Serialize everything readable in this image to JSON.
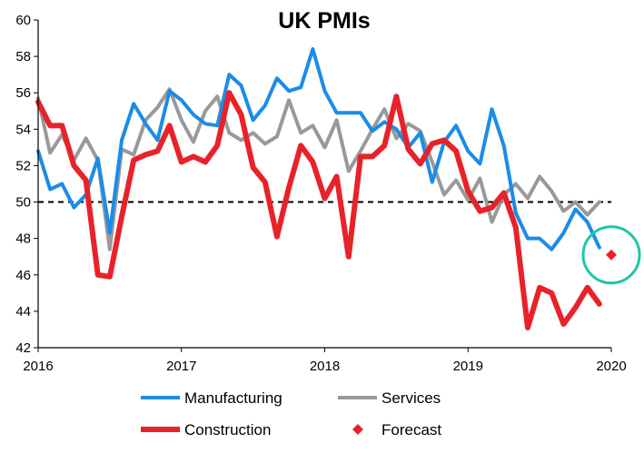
{
  "chart_data": {
    "type": "line",
    "title": "UK PMIs",
    "xlabel": "",
    "ylabel": "",
    "xlim": [
      2016.0,
      2020.0
    ],
    "ylim": [
      42,
      60
    ],
    "x_ticks": [
      "2016",
      "2017",
      "2018",
      "2019",
      "2020"
    ],
    "y_ticks": [
      "42",
      "44",
      "46",
      "48",
      "50",
      "52",
      "54",
      "56",
      "58",
      "60"
    ],
    "legend_position": "bottom",
    "grid": false,
    "reference_line": {
      "value": 50,
      "style": "dashed",
      "color": "#000000"
    },
    "highlight_circle": {
      "x": 2020.0,
      "y": 47.1,
      "color": "#1dc7a6"
    },
    "series": [
      {
        "name": "Manufacturing",
        "color": "#1b8ce8",
        "start": 2016.0,
        "step_months": 1,
        "values": [
          52.8,
          50.7,
          51.0,
          49.7,
          50.4,
          52.4,
          48.3,
          53.4,
          55.4,
          54.3,
          53.4,
          56.1,
          55.6,
          54.8,
          54.3,
          54.2,
          57.0,
          56.4,
          54.5,
          55.3,
          56.8,
          56.1,
          56.3,
          58.4,
          56.1,
          54.9,
          54.9,
          54.9,
          53.9,
          54.4,
          54.0,
          53.0,
          53.8,
          51.1,
          53.3,
          54.2,
          52.8,
          52.1,
          55.1,
          53.1,
          49.4,
          48.0,
          48.0,
          47.4,
          48.3,
          49.6,
          48.9,
          47.5
        ]
      },
      {
        "name": "Services",
        "color": "#999999",
        "start": 2016.0,
        "step_months": 1,
        "values": [
          55.7,
          52.7,
          53.7,
          52.3,
          53.5,
          52.3,
          47.4,
          52.9,
          52.6,
          54.5,
          55.2,
          56.2,
          54.5,
          53.3,
          55.0,
          55.8,
          53.8,
          53.4,
          53.8,
          53.2,
          53.6,
          55.6,
          53.8,
          54.2,
          53.0,
          54.5,
          51.7,
          52.8,
          54.0,
          55.1,
          53.5,
          54.3,
          53.9,
          52.2,
          50.4,
          51.2,
          50.1,
          51.3,
          48.9,
          50.4,
          51.0,
          50.2,
          51.4,
          50.6,
          49.5,
          50.0,
          49.3,
          50.0
        ]
      },
      {
        "name": "Construction",
        "color": "#e8222a",
        "start": 2016.0,
        "step_months": 1,
        "values": [
          55.5,
          54.2,
          54.2,
          52.0,
          51.2,
          46.0,
          45.9,
          49.2,
          52.3,
          52.6,
          52.8,
          54.2,
          52.2,
          52.5,
          52.2,
          53.1,
          56.0,
          54.8,
          51.9,
          51.1,
          48.1,
          50.8,
          53.1,
          52.2,
          50.2,
          51.4,
          47.0,
          52.5,
          52.5,
          53.1,
          55.8,
          52.9,
          52.1,
          53.2,
          53.4,
          52.8,
          50.6,
          49.5,
          49.7,
          50.5,
          48.6,
          43.1,
          45.3,
          45.0,
          43.3,
          44.2,
          45.3,
          44.4
        ]
      },
      {
        "name": "Forecast",
        "color": "#e8222a",
        "marker": "diamond",
        "points": [
          {
            "x": 2020.0,
            "y": 47.1
          }
        ]
      }
    ]
  }
}
